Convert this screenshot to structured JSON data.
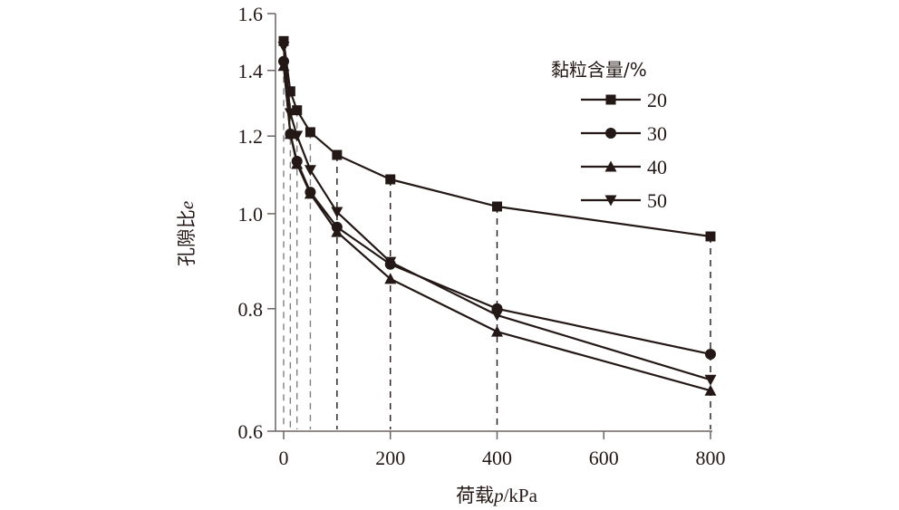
{
  "chart_data": {
    "type": "line",
    "title": "",
    "xlabel_main": "荷载",
    "xlabel_var": "p",
    "xlabel_unit": "/kPa",
    "ylabel_main": "孔隙比",
    "ylabel_var": "e",
    "xlim": [
      0,
      800
    ],
    "ylim": [
      0.6,
      1.6
    ],
    "yscale": "log",
    "xticks": [
      0,
      200,
      400,
      600,
      800
    ],
    "xtick_labels": [
      "0",
      "200",
      "400",
      "600",
      "800"
    ],
    "yticks": [
      0.6,
      0.8,
      1.0,
      1.2,
      1.4,
      1.6
    ],
    "ytick_labels": [
      "0.6",
      "0.8",
      "1.0",
      "1.2",
      "1.4",
      "1.6"
    ],
    "grid": false,
    "drop_lines": "dashed vertical lines from each data point to x-axis",
    "legend": {
      "title": "黏粒含量/%",
      "position": "top-right"
    },
    "x": [
      0,
      12.5,
      25,
      50,
      100,
      200,
      400,
      800
    ],
    "series": [
      {
        "name": "20",
        "marker": "square",
        "values": [
          1.5,
          1.333,
          1.275,
          1.211,
          1.148,
          1.084,
          1.017,
          0.948
        ]
      },
      {
        "name": "30",
        "marker": "circle",
        "values": [
          1.43,
          1.206,
          1.131,
          1.052,
          0.969,
          0.888,
          0.8,
          0.719
        ]
      },
      {
        "name": "40",
        "marker": "triangle-up",
        "values": [
          1.415,
          1.206,
          1.124,
          1.048,
          0.958,
          0.858,
          0.758,
          0.66
        ]
      },
      {
        "name": "50",
        "marker": "triangle-down",
        "values": [
          1.48,
          1.266,
          1.201,
          1.108,
          1.004,
          0.893,
          0.788,
          0.677
        ]
      }
    ]
  },
  "colors": {
    "ink": "#231815",
    "axis": "#6b6462",
    "drop_line_light": "#7f7f7f",
    "drop_line_dark": "#231815"
  }
}
